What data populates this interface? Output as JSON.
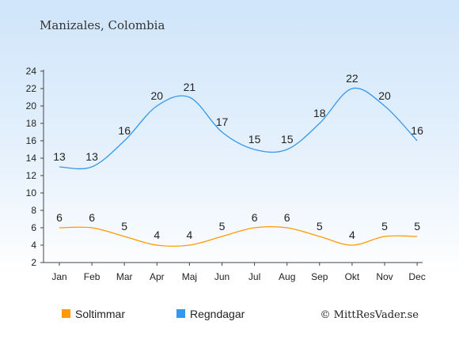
{
  "chart_data": {
    "type": "line",
    "title": "Manizales, Colombia",
    "categories": [
      "Jan",
      "Feb",
      "Mar",
      "Apr",
      "Maj",
      "Jun",
      "Jul",
      "Aug",
      "Sep",
      "Okt",
      "Nov",
      "Dec"
    ],
    "yticks": [
      2,
      4,
      6,
      8,
      10,
      12,
      14,
      16,
      18,
      20,
      22,
      24
    ],
    "ylim": [
      2,
      24
    ],
    "grid": false,
    "legend_position": "bottom-left",
    "series": [
      {
        "name": "Soltimmar",
        "color": "#ff9900",
        "values": [
          6,
          6,
          5,
          4,
          4,
          5,
          6,
          6,
          5,
          4,
          5,
          5
        ]
      },
      {
        "name": "Regndagar",
        "color": "#3399ee",
        "values": [
          13,
          13,
          16,
          20,
          21,
          17,
          15,
          15,
          18,
          22,
          20,
          16
        ]
      }
    ],
    "credit": "© MittResVader.se"
  }
}
